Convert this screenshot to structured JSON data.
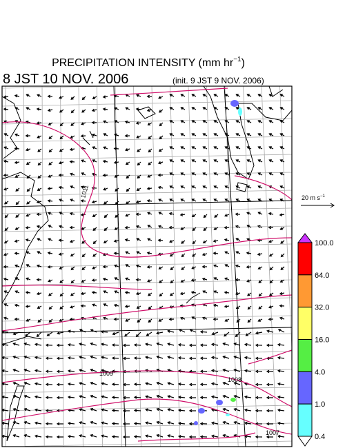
{
  "header": {
    "title": {
      "text": "PRECIPITATION INTENSITY (mm hr",
      "sup": "−1",
      "close": ")"
    },
    "valid_time": "8 JST 10 NOV. 2006",
    "init_time": "(init. 9 JST 9 NOV. 2006)"
  },
  "wind_scale": {
    "text": "20 m s",
    "sup": "−1"
  },
  "isobar_labels": [
    "1011",
    "1009",
    "1008",
    "1007"
  ],
  "colorbar": {
    "labels": [
      "100.0",
      "64.0",
      "32.0",
      "16.0",
      "4.0",
      "1.0",
      "0.4"
    ],
    "colors": [
      "#ff0000",
      "#ff9933",
      "#ffff66",
      "#55ee44",
      "#6666ff",
      "#66ffff"
    ],
    "over_color": "#cc33ff",
    "under_color": "#ffffff"
  }
}
